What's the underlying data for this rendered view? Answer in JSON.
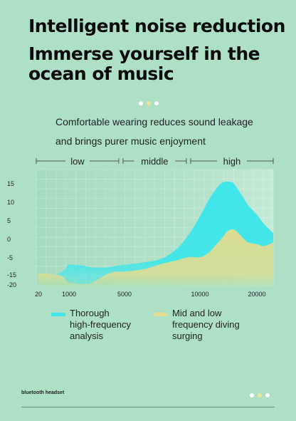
{
  "header": {
    "title": "Intelligent noise reduction",
    "subtitle": "Immerse yourself in the ocean of music"
  },
  "description": {
    "line1": "Comfortable wearing reduces sound leakage",
    "line2": "and brings purer music enjoyment"
  },
  "colors": {
    "background": "#aee0c6",
    "high_frequency": "#3fe6ea",
    "mid_low_frequency": "#e4dc8e",
    "dot_white": "#ffffff",
    "dot_yellow": "#f1e39a"
  },
  "chart_data": {
    "type": "area",
    "title": "",
    "xlabel": "",
    "ylabel": "",
    "x_scale": "log",
    "xlim": [
      20,
      25000
    ],
    "ylim": [
      -20,
      18
    ],
    "y_ticks": [
      "15",
      "10",
      "5",
      "0",
      "-5",
      "-15",
      "-20"
    ],
    "x_ticks": [
      "20",
      "1000",
      "5000",
      "10000",
      "20000"
    ],
    "bands": [
      {
        "label": "low",
        "from": 20,
        "to": 4500
      },
      {
        "label": "middle",
        "from": 4500,
        "to": 9000
      },
      {
        "label": "high",
        "from": 9000,
        "to": 25000
      }
    ],
    "grid": true,
    "series": [
      {
        "name": "Thorough high-frequency analysis",
        "color": "#3fe6ea",
        "x": [
          20,
          200,
          600,
          1000,
          1500,
          2000,
          3000,
          4000,
          5000,
          6000,
          7000,
          8000,
          9000,
          10000,
          11000,
          12000,
          13000,
          14000,
          15000,
          16000,
          17000,
          18000,
          20000,
          22000,
          25000
        ],
        "values": [
          -15,
          -15,
          -12,
          -9.5,
          -10,
          -11,
          -11,
          -10,
          -9.5,
          -8,
          -6,
          -3,
          1,
          6,
          10,
          13,
          15,
          15.5,
          15,
          13,
          11,
          9,
          6.5,
          4,
          1.5
        ]
      },
      {
        "name": "Mid and low frequency diving surging",
        "color": "#e4dc8e",
        "x": [
          20,
          300,
          700,
          1000,
          1500,
          2000,
          3000,
          4000,
          5000,
          6000,
          7000,
          8000,
          9000,
          10000,
          11000,
          12000,
          13000,
          14000,
          15000,
          16000,
          17000,
          18000,
          20000,
          22000,
          25000
        ],
        "values": [
          -14.5,
          -15.5,
          -18,
          -19,
          -20,
          -19,
          -15,
          -13.5,
          -13.5,
          -12,
          -9,
          -7,
          -5,
          -5,
          -4,
          -2,
          0,
          2,
          2.5,
          1.5,
          0,
          -1,
          -1.5,
          -2,
          -1
        ]
      }
    ]
  },
  "legend": {
    "high_line1": "Thorough",
    "high_line2": "high-frequency",
    "high_line3": "analysis",
    "mid_line1": "Mid and low",
    "mid_line2": "frequency diving",
    "mid_line3": "surging"
  },
  "footer": {
    "label": "bluetooth headset"
  }
}
